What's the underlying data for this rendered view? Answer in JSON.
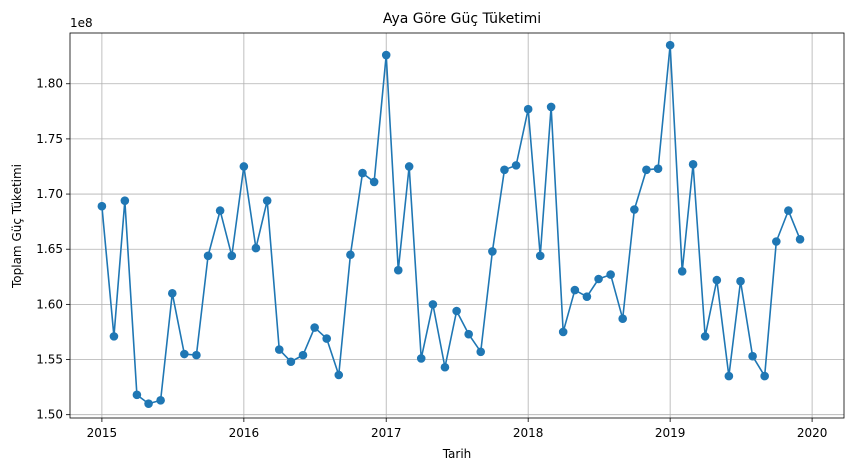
{
  "chart_data": {
    "type": "line",
    "title": "Aya Göre Güç Tüketimi",
    "xlabel": "Tarih",
    "ylabel": "Toplam Güç Tüketimi",
    "y_multiplier_label": "1e8",
    "x_ticks": [
      "2015",
      "2016",
      "2017",
      "2018",
      "2019",
      "2020"
    ],
    "y_ticks": [
      "1.50",
      "1.55",
      "1.60",
      "1.65",
      "1.70",
      "1.75",
      "1.80"
    ],
    "xlim": [
      "2014-10-11",
      "2020-03-23"
    ],
    "ylim": [
      1.497,
      1.846
    ],
    "grid": true,
    "marker": "circle",
    "color": "#1f77b4",
    "series": [
      {
        "x": [
          "2015-01",
          "2015-02",
          "2015-03",
          "2015-04",
          "2015-05",
          "2015-06",
          "2015-07",
          "2015-08",
          "2015-09",
          "2015-10",
          "2015-11",
          "2015-12",
          "2016-01",
          "2016-02",
          "2016-03",
          "2016-04",
          "2016-05",
          "2016-06",
          "2016-07",
          "2016-08",
          "2016-09",
          "2016-10",
          "2016-11",
          "2016-12",
          "2017-01",
          "2017-02",
          "2017-03",
          "2017-04",
          "2017-05",
          "2017-06",
          "2017-07",
          "2017-08",
          "2017-09",
          "2017-10",
          "2017-11",
          "2017-12",
          "2018-01",
          "2018-02",
          "2018-03",
          "2018-04",
          "2018-05",
          "2018-06",
          "2018-07",
          "2018-08",
          "2018-09",
          "2018-10",
          "2018-11",
          "2018-12",
          "2019-01",
          "2019-02",
          "2019-03",
          "2019-04",
          "2019-05",
          "2019-06",
          "2019-07",
          "2019-08",
          "2019-09",
          "2019-10",
          "2019-11",
          "2019-12"
        ],
        "values": [
          1.689,
          1.571,
          1.694,
          1.518,
          1.51,
          1.513,
          1.61,
          1.555,
          1.554,
          1.644,
          1.685,
          1.644,
          1.725,
          1.651,
          1.694,
          1.559,
          1.548,
          1.554,
          1.579,
          1.569,
          1.536,
          1.645,
          1.719,
          1.711,
          1.826,
          1.631,
          1.725,
          1.551,
          1.6,
          1.543,
          1.594,
          1.573,
          1.557,
          1.648,
          1.722,
          1.726,
          1.777,
          1.644,
          1.779,
          1.575,
          1.613,
          1.607,
          1.623,
          1.627,
          1.587,
          1.686,
          1.722,
          1.723,
          1.835,
          1.63,
          1.727,
          1.571,
          1.622,
          1.535,
          1.621,
          1.553,
          1.535,
          1.657,
          1.685,
          1.659
        ]
      }
    ]
  }
}
